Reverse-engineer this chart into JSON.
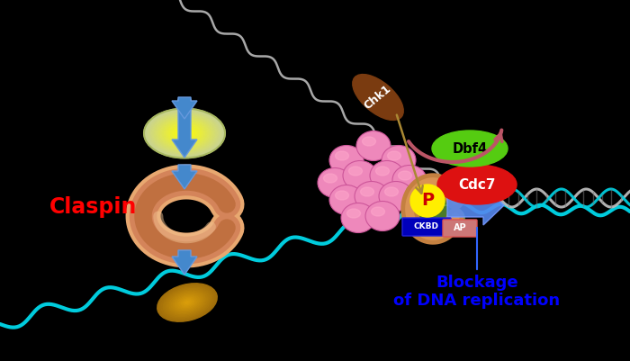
{
  "bg_color": "#000000",
  "claspin_label": "Claspin",
  "claspin_color": "#ff0000",
  "blockage_line1": "Blockage",
  "blockage_line2": "of DNA replication",
  "blockage_color": "#0000ff",
  "dbf4_label": "Dbf4",
  "dbf4_color": "#55dd11",
  "cdc7_label": "Cdc7",
  "cdc7_color": "#dd1111",
  "chk1_label": "Chk1",
  "chk1_color": "#7a3b10",
  "p_label": "P",
  "p_color": "#ffff00",
  "ap_label": "AP",
  "ap_color": "#cc7777",
  "ckbd_label": "CKBD",
  "ckbd_color": "#0000cc",
  "figsize": [
    7.0,
    4.01
  ],
  "dpi": 100
}
